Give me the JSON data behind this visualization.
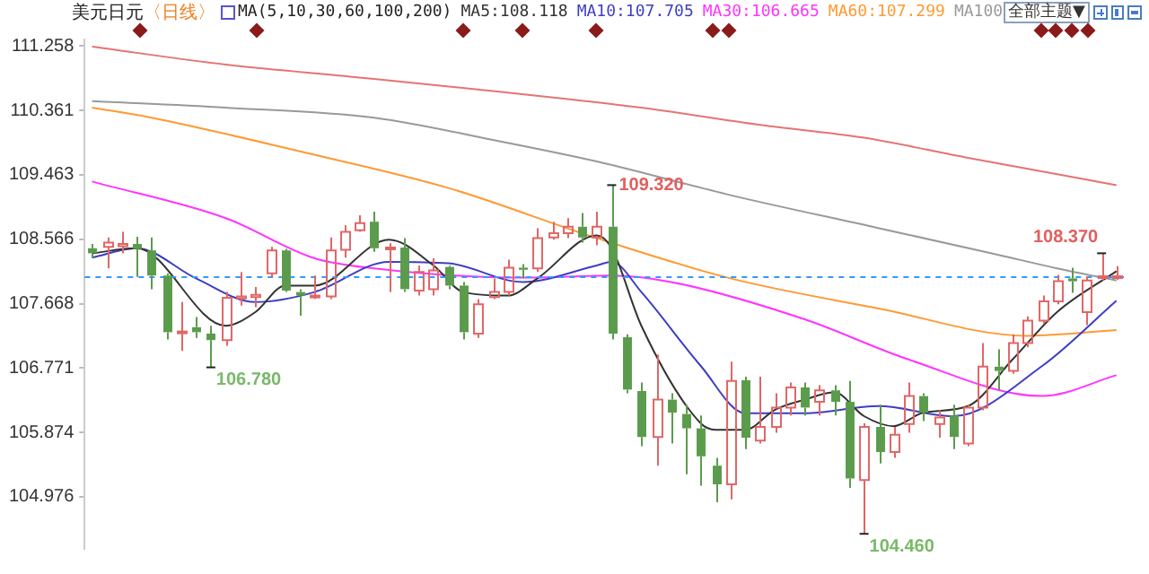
{
  "chart_data": {
    "type": "candlestick",
    "title": "美元日元",
    "subtitle": "〈日线〉",
    "annotations": [
      "MA(5,10,30,60,100,200)",
      "全部主题▼",
      "109.320",
      "106.780",
      "104.460",
      "108.370"
    ],
    "categories": [
      null,
      null,
      null,
      null,
      null,
      null,
      null,
      null,
      null,
      null,
      null,
      null,
      null,
      null,
      null,
      null,
      null,
      null,
      null,
      null,
      null,
      null,
      null,
      null,
      null,
      null,
      null,
      null,
      null,
      null,
      null,
      null,
      null,
      null,
      null,
      null,
      null,
      null,
      null,
      null,
      null,
      null,
      null,
      null,
      null,
      null,
      null,
      null,
      null,
      null,
      null,
      null,
      null,
      null,
      null,
      null,
      null,
      null,
      null,
      null,
      null,
      null,
      null,
      null,
      null,
      null,
      null,
      null,
      null,
      null
    ],
    "ohlc": [
      [
        108.44,
        108.5,
        108.3,
        108.37
      ],
      [
        108.46,
        108.59,
        108.16,
        108.52
      ],
      [
        108.47,
        108.67,
        108.37,
        108.5
      ],
      [
        108.5,
        108.6,
        108.04,
        108.43
      ],
      [
        108.41,
        108.59,
        107.87,
        108.06
      ],
      [
        108.06,
        108.09,
        107.17,
        107.27
      ],
      [
        107.27,
        107.69,
        107.01,
        107.28
      ],
      [
        107.34,
        107.48,
        107.19,
        107.27
      ],
      [
        107.25,
        107.36,
        106.78,
        107.16
      ],
      [
        107.16,
        107.83,
        107.08,
        107.75
      ],
      [
        107.74,
        108.11,
        107.64,
        107.77
      ],
      [
        107.76,
        107.9,
        107.62,
        107.79
      ],
      [
        108.09,
        108.46,
        108.03,
        108.41
      ],
      [
        108.41,
        108.43,
        107.83,
        107.85
      ],
      [
        107.83,
        107.87,
        107.5,
        107.78
      ],
      [
        107.76,
        108.06,
        107.73,
        107.78
      ],
      [
        107.77,
        108.59,
        107.73,
        108.41
      ],
      [
        108.42,
        108.76,
        108.31,
        108.67
      ],
      [
        108.69,
        108.9,
        108.67,
        108.79
      ],
      [
        108.81,
        108.95,
        108.39,
        108.44
      ],
      [
        108.44,
        108.51,
        107.83,
        108.45
      ],
      [
        108.45,
        108.58,
        107.83,
        107.87
      ],
      [
        107.85,
        108.2,
        107.78,
        108.11
      ],
      [
        107.87,
        108.3,
        107.78,
        108.13
      ],
      [
        108.18,
        108.2,
        107.87,
        107.92
      ],
      [
        107.92,
        107.97,
        107.17,
        107.27
      ],
      [
        107.25,
        107.73,
        107.19,
        107.66
      ],
      [
        107.76,
        108.02,
        107.73,
        107.83
      ],
      [
        107.83,
        108.28,
        107.78,
        108.17
      ],
      [
        108.17,
        108.22,
        108.02,
        108.14
      ],
      [
        108.16,
        108.72,
        108.11,
        108.58
      ],
      [
        108.59,
        108.81,
        108.56,
        108.65
      ],
      [
        108.65,
        108.86,
        108.58,
        108.74
      ],
      [
        108.74,
        108.93,
        108.52,
        108.59
      ],
      [
        108.59,
        108.95,
        108.48,
        108.74
      ],
      [
        108.74,
        109.32,
        107.17,
        107.25
      ],
      [
        107.2,
        107.24,
        106.42,
        106.47
      ],
      [
        106.45,
        106.57,
        105.68,
        105.81
      ],
      [
        105.81,
        106.96,
        105.41,
        106.33
      ],
      [
        106.33,
        106.42,
        105.72,
        106.15
      ],
      [
        106.13,
        106.26,
        105.29,
        105.93
      ],
      [
        105.93,
        106.11,
        105.13,
        105.54
      ],
      [
        105.41,
        105.52,
        104.9,
        105.15
      ],
      [
        105.15,
        106.86,
        104.94,
        106.59
      ],
      [
        106.6,
        106.65,
        105.64,
        105.8
      ],
      [
        105.76,
        106.65,
        105.72,
        105.95
      ],
      [
        105.95,
        106.42,
        105.87,
        106.22
      ],
      [
        106.22,
        106.57,
        106.11,
        106.5
      ],
      [
        106.5,
        106.57,
        106.11,
        106.22
      ],
      [
        106.3,
        106.53,
        106.11,
        106.46
      ],
      [
        106.46,
        106.53,
        106.11,
        106.3
      ],
      [
        106.3,
        106.59,
        105.1,
        105.23
      ],
      [
        105.21,
        106.0,
        104.46,
        105.95
      ],
      [
        105.95,
        106.26,
        105.44,
        105.6
      ],
      [
        105.6,
        105.95,
        105.52,
        105.84
      ],
      [
        105.99,
        106.57,
        105.87,
        106.38
      ],
      [
        106.38,
        106.42,
        106.03,
        106.15
      ],
      [
        105.99,
        106.18,
        105.8,
        106.08
      ],
      [
        106.11,
        106.26,
        105.64,
        105.81
      ],
      [
        105.72,
        106.26,
        105.68,
        106.22
      ],
      [
        106.22,
        107.12,
        106.18,
        106.79
      ],
      [
        106.79,
        107.03,
        106.46,
        106.73
      ],
      [
        106.73,
        107.24,
        106.69,
        107.12
      ],
      [
        107.12,
        107.49,
        107.06,
        107.43
      ],
      [
        107.43,
        107.78,
        107.39,
        107.7
      ],
      [
        107.7,
        108.07,
        107.66,
        107.98
      ],
      [
        108.02,
        108.17,
        107.82,
        107.98
      ],
      [
        107.55,
        108.05,
        107.37,
        107.99
      ],
      [
        108.03,
        108.37,
        107.99,
        108.05
      ],
      [
        108.04,
        108.19,
        108.0,
        108.05
      ]
    ],
    "colors": [
      "#5b9b4c",
      "#e06666",
      "#e06666",
      "#5b9b4c",
      "#5b9b4c",
      "#5b9b4c",
      "#e06666",
      "#5b9b4c",
      "#5b9b4c",
      "#e06666",
      "#e06666",
      "#e06666",
      "#e06666",
      "#5b9b4c",
      "#5b9b4c",
      "#e06666",
      "#e06666",
      "#e06666",
      "#e06666",
      "#5b9b4c",
      "#e06666",
      "#5b9b4c",
      "#e06666",
      "#e06666",
      "#5b9b4c",
      "#5b9b4c",
      "#e06666",
      "#e06666",
      "#e06666",
      "#5b9b4c",
      "#e06666",
      "#e06666",
      "#e06666",
      "#5b9b4c",
      "#e06666",
      "#5b9b4c",
      "#5b9b4c",
      "#5b9b4c",
      "#e06666",
      "#5b9b4c",
      "#5b9b4c",
      "#5b9b4c",
      "#5b9b4c",
      "#e06666",
      "#5b9b4c",
      "#e06666",
      "#e06666",
      "#e06666",
      "#5b9b4c",
      "#e06666",
      "#5b9b4c",
      "#5b9b4c",
      "#e06666",
      "#5b9b4c",
      "#e06666",
      "#e06666",
      "#5b9b4c",
      "#e06666",
      "#5b9b4c",
      "#e06666",
      "#e06666",
      "#5b9b4c",
      "#e06666",
      "#e06666",
      "#e06666",
      "#e06666",
      "#5b9b4c",
      "#e06666",
      "#e06666",
      "#e06666"
    ],
    "series": [
      {
        "type": "line",
        "name": "MA5:108.118",
        "color": "#333333",
        "values": [
          108.37,
          null,
          null,
          108.44,
          null,
          null,
          null,
          null,
          null,
          107.36,
          null,
          107.55,
          null,
          107.92,
          null,
          107.92,
          null,
          null,
          null,
          null,
          108.56,
          null,
          null,
          108.2,
          null,
          107.83,
          null,
          null,
          107.78,
          null,
          108.02,
          null,
          null,
          null,
          108.62,
          108.44,
          null,
          107.36,
          null,
          null,
          null,
          106.0,
          105.91,
          null,
          105.91,
          null,
          106.19,
          null,
          106.33,
          null,
          106.43,
          null,
          106.1,
          null,
          105.96,
          null,
          106.15,
          null,
          null,
          106.24,
          null,
          null,
          106.89,
          null,
          null,
          107.55,
          null,
          null,
          null,
          108.12
        ]
      },
      {
        "type": "line",
        "name": "MA10:107.705",
        "color": "#3d3dc4",
        "values": [
          108.31,
          null,
          null,
          108.44,
          null,
          null,
          null,
          108.02,
          null,
          null,
          null,
          107.69,
          null,
          null,
          null,
          107.83,
          null,
          null,
          null,
          null,
          108.25,
          null,
          null,
          null,
          108.23,
          null,
          null,
          null,
          null,
          107.97,
          null,
          null,
          null,
          null,
          108.2,
          108.25,
          null,
          107.83,
          null,
          null,
          null,
          106.8,
          null,
          null,
          106.14,
          null,
          null,
          null,
          106.14,
          null,
          null,
          null,
          null,
          106.24,
          null,
          null,
          null,
          null,
          106.1,
          null,
          null,
          null,
          null,
          null,
          106.8,
          null,
          null,
          null,
          null,
          107.71
        ]
      },
      {
        "type": "line",
        "name": "MA30:106.665",
        "color": "#ff33ff",
        "values": [
          109.37,
          null,
          null,
          null,
          null,
          null,
          null,
          null,
          null,
          108.86,
          null,
          null,
          null,
          null,
          null,
          108.3,
          null,
          null,
          null,
          108.16,
          null,
          null,
          null,
          null,
          null,
          null,
          null,
          null,
          null,
          108.03,
          null,
          null,
          null,
          null,
          null,
          108.06,
          null,
          null,
          null,
          107.97,
          null,
          null,
          null,
          null,
          null,
          null,
          null,
          null,
          107.45,
          null,
          null,
          null,
          null,
          null,
          null,
          106.89,
          null,
          null,
          null,
          null,
          null,
          null,
          null,
          null,
          106.38,
          null,
          null,
          null,
          null,
          106.67
        ]
      },
      {
        "type": "line",
        "name": "MA60:107.299",
        "color": "#ff9933",
        "values": [
          110.4,
          null,
          null,
          null,
          110.26,
          null,
          null,
          null,
          null,
          null,
          null,
          null,
          null,
          null,
          109.79,
          null,
          null,
          null,
          null,
          null,
          null,
          null,
          null,
          null,
          109.28,
          null,
          null,
          null,
          null,
          null,
          null,
          null,
          null,
          null,
          108.58,
          null,
          null,
          null,
          null,
          null,
          null,
          null,
          null,
          108.02,
          null,
          null,
          null,
          null,
          null,
          null,
          null,
          null,
          null,
          107.6,
          null,
          null,
          null,
          null,
          null,
          null,
          null,
          null,
          null,
          107.22,
          null,
          null,
          null,
          null,
          null,
          107.3
        ]
      },
      {
        "type": "line",
        "name": "MA100",
        "color": "#999999",
        "values": [
          110.49,
          null,
          null,
          null,
          null,
          null,
          null,
          null,
          null,
          110.4,
          null,
          null,
          null,
          null,
          null,
          null,
          null,
          null,
          null,
          110.26,
          null,
          null,
          null,
          null,
          null,
          null,
          null,
          109.95,
          null,
          null,
          null,
          null,
          null,
          null,
          109.65,
          null,
          null,
          null,
          null,
          null,
          null,
          null,
          null,
          109.18,
          null,
          null,
          null,
          null,
          null,
          null,
          null,
          null,
          null,
          108.72,
          null,
          null,
          null,
          null,
          null,
          null,
          null,
          108.35,
          null,
          null,
          null,
          108.16,
          null,
          null,
          null,
          107.99
        ]
      },
      {
        "type": "line",
        "color": "#e57373",
        "values": [
          111.25,
          null,
          null,
          null,
          null,
          null,
          null,
          null,
          null,
          111.0,
          null,
          null,
          null,
          null,
          null,
          null,
          null,
          null,
          110.82,
          null,
          null,
          null,
          null,
          null,
          null,
          null,
          null,
          null,
          110.61,
          null,
          null,
          null,
          null,
          null,
          null,
          null,
          null,
          110.4,
          null,
          null,
          null,
          null,
          null,
          null,
          null,
          110.16,
          null,
          null,
          null,
          null,
          null,
          null,
          109.98,
          null,
          null,
          null,
          null,
          null,
          null,
          109.7,
          null,
          null,
          null,
          null,
          null,
          null,
          null,
          null,
          null,
          109.32
        ]
      }
    ],
    "ref_lines": [
      {
        "axis": "y",
        "value": 108.05,
        "color": "#3399ff",
        "line_style": "dashed"
      }
    ],
    "ylim": [
      104.25,
      111.35
    ],
    "yticks": [
      104.976,
      105.874,
      106.771,
      107.668,
      108.566,
      109.463,
      110.361,
      111.258
    ],
    "legend": "top"
  }
}
